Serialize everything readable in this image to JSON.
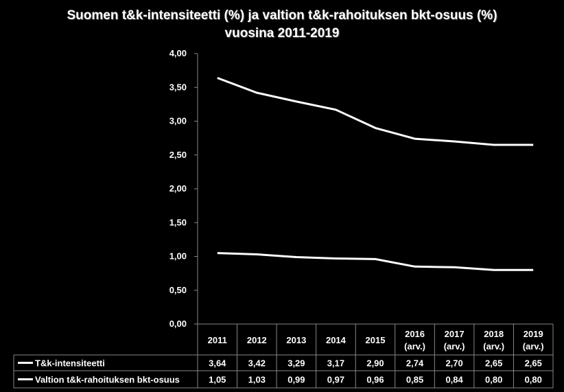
{
  "chart_data": {
    "type": "line",
    "title": "Suomen t&k-intensiteetti (%) ja valtion t&k-rahoituksen bkt-osuus (%)",
    "subtitle": "vuosina 2011-2019",
    "ylim": [
      0,
      4
    ],
    "yticks": [
      "0,00",
      "0,50",
      "1,00",
      "1,50",
      "2,00",
      "2,50",
      "3,00",
      "3,50",
      "4,00"
    ],
    "ytick_values": [
      0,
      0.5,
      1,
      1.5,
      2,
      2.5,
      3,
      3.5,
      4
    ],
    "grid": false,
    "categories": [
      {
        "line1": "2011",
        "line2": ""
      },
      {
        "line1": "2012",
        "line2": ""
      },
      {
        "line1": "2013",
        "line2": ""
      },
      {
        "line1": "2014",
        "line2": ""
      },
      {
        "line1": "2015",
        "line2": ""
      },
      {
        "line1": "2016",
        "line2": "(arv.)"
      },
      {
        "line1": "2017",
        "line2": "(arv.)"
      },
      {
        "line1": "2018",
        "line2": "(arv.)"
      },
      {
        "line1": "2019",
        "line2": "(arv.)"
      }
    ],
    "series": [
      {
        "name": "T&k-intensiteetti",
        "color": "#ffffff",
        "values": [
          3.64,
          3.42,
          3.29,
          3.17,
          2.9,
          2.74,
          2.7,
          2.65,
          2.65
        ],
        "labels": [
          "3,64",
          "3,42",
          "3,29",
          "3,17",
          "2,90",
          "2,74",
          "2,70",
          "2,65",
          "2,65"
        ]
      },
      {
        "name": "Valtion t&k-rahoituksen bkt-osuus",
        "color": "#ffffff",
        "values": [
          1.05,
          1.03,
          0.99,
          0.97,
          0.96,
          0.85,
          0.84,
          0.8,
          0.8
        ],
        "labels": [
          "1,05",
          "1,03",
          "0,99",
          "0,97",
          "0,96",
          "0,85",
          "0,84",
          "0,80",
          "0,80"
        ]
      }
    ],
    "data_table": true
  },
  "colors": {
    "background": "#000000",
    "line": "#ffffff",
    "border": "#888888"
  }
}
